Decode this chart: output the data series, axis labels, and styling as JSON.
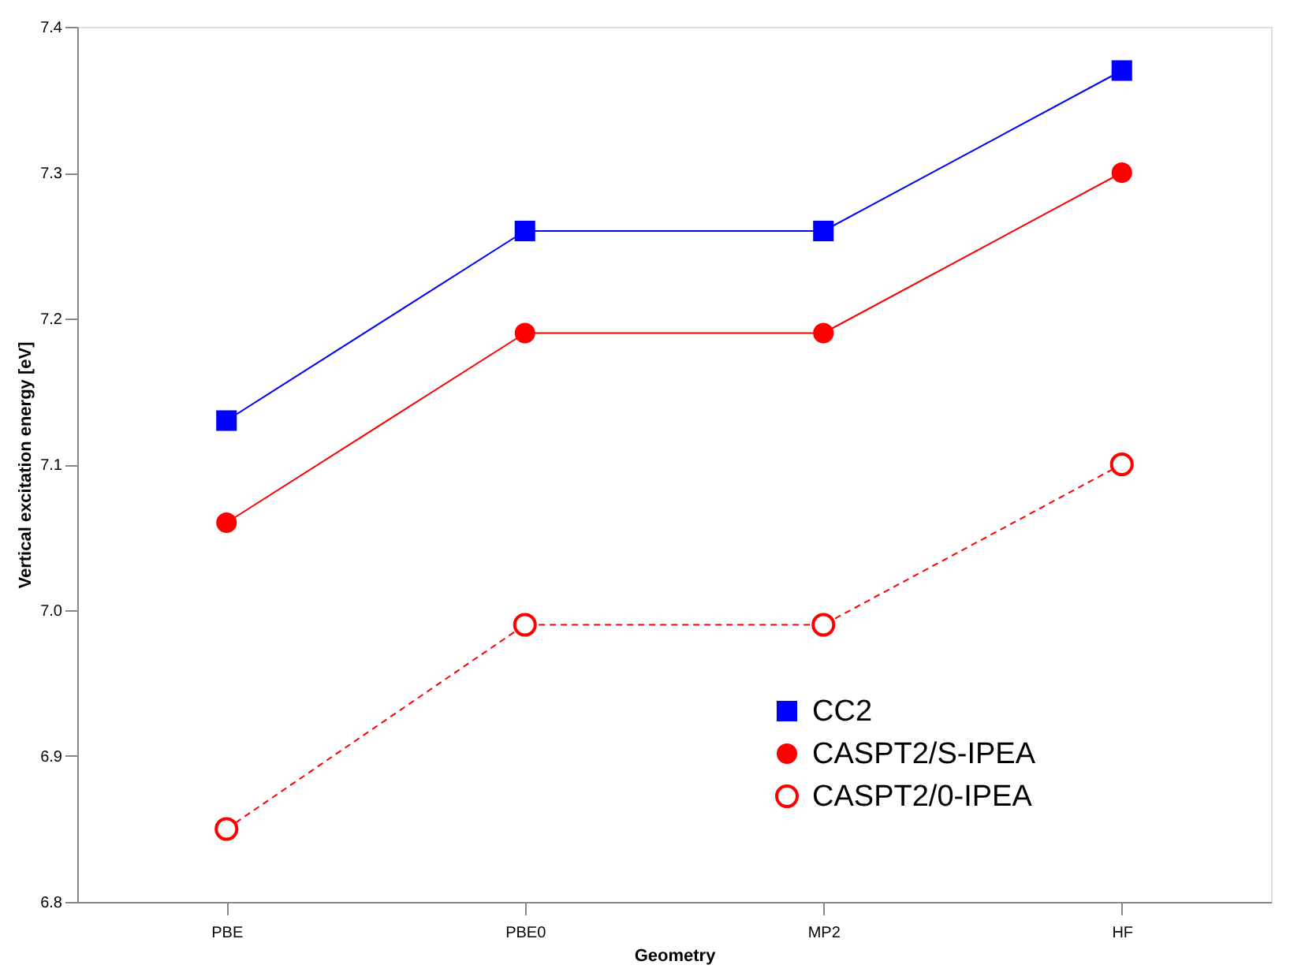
{
  "chart_data": {
    "type": "line",
    "xlabel": "Geometry",
    "ylabel": "Vertical excitation energy [eV]",
    "categories": [
      "PBE",
      "PBE0",
      "MP2",
      "HF"
    ],
    "series": [
      {
        "name": "CC2",
        "color": "#0000ff",
        "values": [
          7.13,
          7.26,
          7.26,
          7.37
        ],
        "marker": "square",
        "line_style": "solid"
      },
      {
        "name": "CASPT2/S-IPEA",
        "color": "#ff0000",
        "values": [
          7.06,
          7.19,
          7.19,
          7.3
        ],
        "marker": "circle",
        "line_style": "solid"
      },
      {
        "name": "CASPT2/0-IPEA",
        "color": "#ff0000",
        "values": [
          6.85,
          6.99,
          6.99,
          7.1
        ],
        "marker": "circle-open",
        "line_style": "dashed"
      }
    ],
    "ylim": [
      6.8,
      7.4
    ],
    "yticks": [
      {
        "value": 6.8,
        "label": "6.8"
      },
      {
        "value": 6.9,
        "label": "6.9"
      },
      {
        "value": 7.0,
        "label": "7.0"
      },
      {
        "value": 7.1,
        "label": "7.1"
      },
      {
        "value": 7.2,
        "label": "7.2"
      },
      {
        "value": 7.3,
        "label": "7.3"
      },
      {
        "value": 7.4,
        "label": "7.4"
      }
    ],
    "grid": false,
    "legend": "bottom right"
  }
}
